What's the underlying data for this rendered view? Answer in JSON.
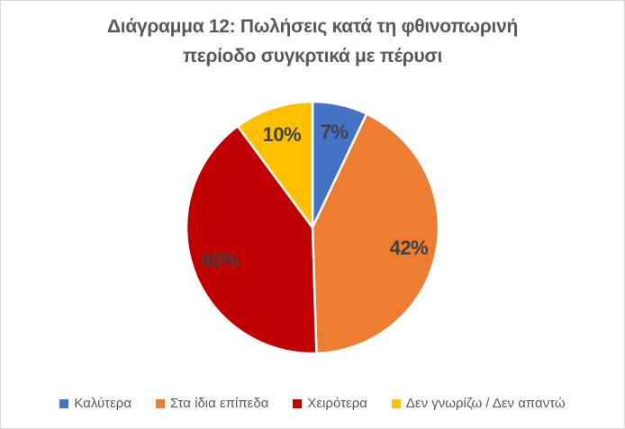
{
  "page": {
    "background": "#FFFFFF",
    "border_color": "#D9D9D9"
  },
  "title": {
    "text": "Διάγραμμα 12: Πωλήσεις κατά τη φθινοπωρινή περίοδο συγκρτικά με πέρυσι",
    "line1": "Διάγραμμα 12: Πωλήσεις κατά τη φθινοπωρινή",
    "line2": "περίοδο συγκρτικά με πέρυσι",
    "color": "#595959"
  },
  "chart_data": {
    "type": "pie",
    "title": "Διάγραμμα 12: Πωλήσεις κατά τη φθινοπωρινή περίοδο συγκρτικά με πέρυσι",
    "categories": [
      "Καλύτερα",
      "Στα ίδια επίπεδα",
      "Χειρότερα",
      "Δεν γνωρίζω / Δεν απαντώ"
    ],
    "values": [
      7,
      42,
      40,
      10
    ],
    "unit": "percent",
    "data_labels": [
      "7%",
      "42%",
      "40%",
      "10%"
    ],
    "colors": [
      "#4472C4",
      "#ED7D31",
      "#C00000",
      "#FFC000"
    ],
    "start_angle_deg": 0,
    "direction": "clockwise",
    "slice_border_color": "#FFFFFF",
    "data_label_color": "#404040",
    "legend_position": "bottom"
  },
  "legend": {
    "text_color": "#595959",
    "items": [
      {
        "label": "Καλύτερα",
        "color": "#4472C4"
      },
      {
        "label": "Στα ίδια επίπεδα",
        "color": "#ED7D31"
      },
      {
        "label": "Χειρότερα",
        "color": "#C00000"
      },
      {
        "label": "Δεν γνωρίζω / Δεν απαντώ",
        "color": "#FFC000"
      }
    ]
  }
}
